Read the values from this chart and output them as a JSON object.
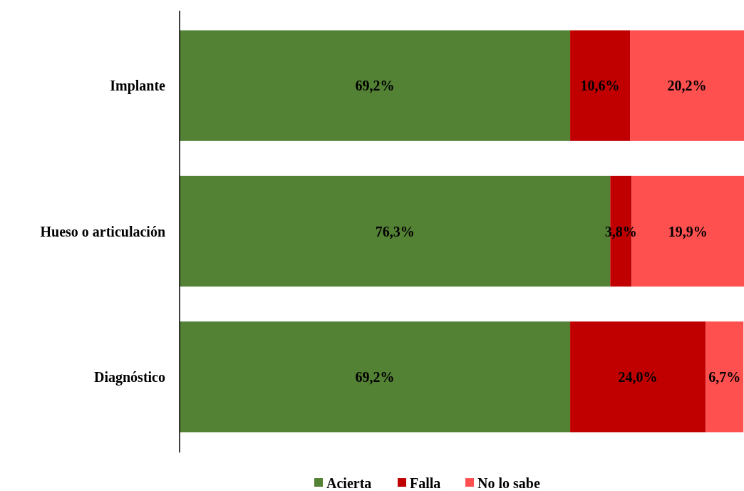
{
  "chart_data": {
    "type": "bar",
    "orientation": "horizontal",
    "stacked": true,
    "categories": [
      "Implante",
      "Hueso o articulación",
      "Diagnóstico"
    ],
    "xlim": [
      0,
      100
    ],
    "legend": "bottom",
    "series": [
      {
        "name": "Acierta",
        "color": "#548235",
        "values": [
          69.2,
          76.3,
          69.2
        ],
        "value_labels": [
          "69,2%",
          "76,3%",
          "69,2%"
        ]
      },
      {
        "name": "Falla",
        "color": "#c00000",
        "values": [
          10.6,
          3.8,
          24.0
        ],
        "value_labels": [
          "10,6%",
          "3,8%",
          "24,0%"
        ]
      },
      {
        "name": "No lo sabe",
        "color": "#ff5050",
        "values": [
          20.2,
          19.9,
          6.7
        ],
        "value_labels": [
          "20,2%",
          "19,9%",
          "6,7%"
        ]
      }
    ]
  }
}
